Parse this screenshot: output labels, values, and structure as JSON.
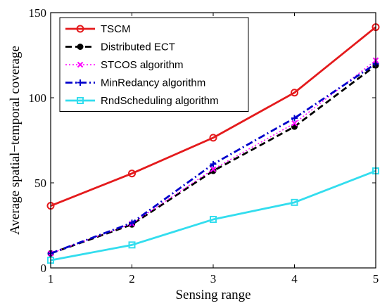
{
  "chart_data": {
    "type": "line",
    "xlabel": "Sensing range",
    "ylabel": "Average spatial−temporal coverage",
    "x": [
      1,
      2,
      3,
      4,
      5
    ],
    "x_ticks": [
      "1",
      "2",
      "3",
      "4",
      "5"
    ],
    "y_ticks": [
      "0",
      "50",
      "100",
      "150"
    ],
    "xlim": [
      1,
      5
    ],
    "ylim": [
      0,
      150
    ],
    "grid": false,
    "legend_position": "top-left",
    "series": [
      {
        "name": "TSCM",
        "values": [
          36.5,
          55.5,
          76.5,
          103,
          141.5
        ],
        "color": "#e41a1c",
        "dash": "solid",
        "marker": "circle",
        "width": 2.8
      },
      {
        "name": "Distributed ECT",
        "values": [
          8.5,
          25.5,
          57,
          83,
          119
        ],
        "color": "#000000",
        "dash": "dashed",
        "marker": "dot",
        "width": 2.8
      },
      {
        "name": "STCOS algorithm",
        "values": [
          8.5,
          26,
          58,
          85,
          122
        ],
        "color": "#ff00ff",
        "dash": "dotted",
        "marker": "x",
        "width": 1.5
      },
      {
        "name": "MinRedancy algorithm",
        "values": [
          8.5,
          26.5,
          61,
          88,
          120
        ],
        "color": "#0000cc",
        "dash": "dashdot",
        "marker": "plus",
        "width": 2.8
      },
      {
        "name": "RndScheduling algorithm",
        "values": [
          4.5,
          13.5,
          28.5,
          38.5,
          57
        ],
        "color": "#33ddee",
        "dash": "solid",
        "marker": "square",
        "width": 2.8
      }
    ]
  }
}
